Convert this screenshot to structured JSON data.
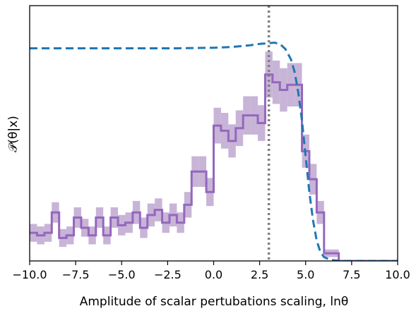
{
  "chart_data": {
    "type": "line",
    "title": "",
    "xlabel": "Amplitude of scalar pertubations scaling, lnθ",
    "ylabel": "𝒫(θ|x)",
    "xlim": [
      -10.0,
      10.0
    ],
    "ylim": [
      0.0,
      1.0
    ],
    "xticks": [
      -10.0,
      -7.5,
      -5.0,
      -2.5,
      0.0,
      2.5,
      5.0,
      7.5,
      10.0
    ],
    "xtick_labels": [
      "−10.0",
      "−7.5",
      "−5.0",
      "−2.5",
      "0.0",
      "2.5",
      "5.0",
      "7.5",
      "10.0"
    ],
    "yticks_visible": false,
    "grid": false,
    "reference_line": {
      "x": 3.0,
      "style": "dotted",
      "color": "#808080"
    },
    "series": [
      {
        "kind": "step-with-band",
        "color": "#9467bd",
        "band_color": "#c5b0d5",
        "bin_width": 0.4,
        "x": [
          -10.0,
          -9.6,
          -9.2,
          -8.8,
          -8.4,
          -8.0,
          -7.6,
          -7.2,
          -6.8,
          -6.4,
          -6.0,
          -5.6,
          -5.2,
          -4.8,
          -4.4,
          -4.0,
          -3.6,
          -3.2,
          -2.8,
          -2.4,
          -2.0,
          -1.6,
          -1.2,
          -0.8,
          -0.4,
          0.0,
          0.4,
          0.8,
          1.2,
          1.6,
          2.0,
          2.4,
          2.8,
          3.2,
          3.6,
          4.0,
          4.4,
          4.8,
          5.2,
          5.6,
          6.0,
          6.4,
          6.8,
          7.2,
          7.6,
          8.0,
          8.4,
          8.8,
          9.2,
          9.6
        ],
        "values": [
          0.11,
          0.1,
          0.11,
          0.19,
          0.09,
          0.1,
          0.17,
          0.13,
          0.1,
          0.17,
          0.1,
          0.17,
          0.14,
          0.15,
          0.19,
          0.13,
          0.18,
          0.2,
          0.15,
          0.18,
          0.15,
          0.22,
          0.35,
          0.35,
          0.27,
          0.53,
          0.51,
          0.47,
          0.52,
          0.57,
          0.57,
          0.54,
          0.73,
          0.7,
          0.67,
          0.69,
          0.69,
          0.43,
          0.32,
          0.19,
          0.03,
          0.03,
          0.0,
          0.0,
          0.0,
          0.0,
          0.0,
          0.0,
          0.0,
          0.0
        ],
        "band_half_width": [
          0.035,
          0.035,
          0.035,
          0.04,
          0.035,
          0.035,
          0.04,
          0.035,
          0.035,
          0.04,
          0.035,
          0.04,
          0.04,
          0.04,
          0.045,
          0.04,
          0.045,
          0.045,
          0.04,
          0.045,
          0.04,
          0.05,
          0.06,
          0.06,
          0.055,
          0.07,
          0.07,
          0.065,
          0.07,
          0.075,
          0.075,
          0.07,
          0.09,
          0.085,
          0.085,
          0.085,
          0.085,
          0.065,
          0.06,
          0.045,
          0.015,
          0.015,
          0.0,
          0.0,
          0.0,
          0.0,
          0.0,
          0.0,
          0.0,
          0.0
        ]
      },
      {
        "kind": "dashed-line",
        "color": "#1f77b4",
        "x": [
          -10.0,
          -8.0,
          -6.0,
          -4.0,
          -2.0,
          0.0,
          1.0,
          2.0,
          2.5,
          3.0,
          3.3,
          3.6,
          3.9,
          4.2,
          4.4,
          4.6,
          4.8,
          5.0,
          5.2,
          5.4,
          5.6,
          5.8,
          6.0,
          6.3,
          6.6,
          7.0,
          8.0,
          9.0,
          10.0
        ],
        "values": [
          0.833,
          0.833,
          0.833,
          0.833,
          0.833,
          0.835,
          0.838,
          0.845,
          0.85,
          0.853,
          0.855,
          0.85,
          0.83,
          0.79,
          0.74,
          0.66,
          0.55,
          0.41,
          0.27,
          0.16,
          0.08,
          0.035,
          0.015,
          0.005,
          0.002,
          0.0,
          0.0,
          0.0,
          0.0
        ]
      }
    ]
  }
}
